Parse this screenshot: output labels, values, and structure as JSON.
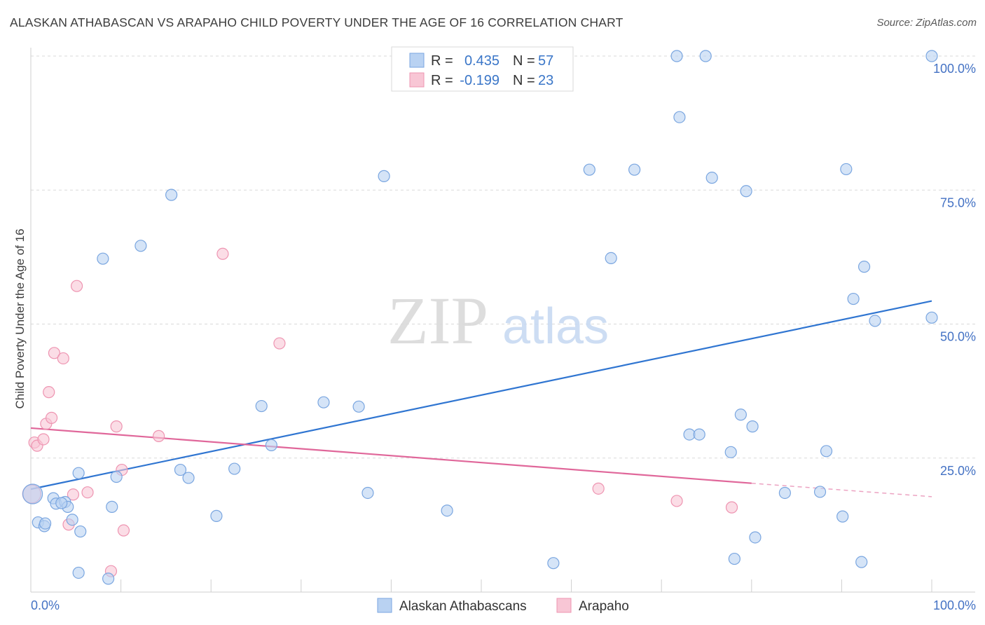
{
  "title": "ALASKAN ATHABASCAN VS ARAPAHO CHILD POVERTY UNDER THE AGE OF 16 CORRELATION CHART",
  "source": "Source: ZipAtlas.com",
  "watermark": {
    "zip": "ZIP",
    "atlas": "atlas"
  },
  "colors": {
    "blue_fill": "#b9d2f2",
    "blue_stroke": "#7aa6e0",
    "blue_line": "#2f75d1",
    "pink_fill": "#f8c6d5",
    "pink_stroke": "#ee94b1",
    "pink_line": "#e0679a",
    "tick_text": "#4472c4",
    "grid": "#d9d9d9"
  },
  "legend": {
    "rows": [
      {
        "r_label": "R =",
        "r_value": "0.435",
        "n_label": "N =",
        "n_value": "57"
      },
      {
        "r_label": "R =",
        "r_value": "-0.199",
        "n_label": "N =",
        "n_value": "23"
      }
    ]
  },
  "bottom_legend": [
    "Alaskan Athabascans",
    "Arapaho"
  ],
  "chart_data": {
    "type": "scatter",
    "title": "ALASKAN ATHABASCAN VS ARAPAHO CHILD POVERTY UNDER THE AGE OF 16 CORRELATION CHART",
    "xlabel": "",
    "ylabel": "Child Poverty Under the Age of 16",
    "xlim": [
      0,
      100
    ],
    "ylim": [
      0,
      100
    ],
    "x_tick_labels": [
      "0.0%",
      "100.0%"
    ],
    "y_tick_labels": [
      {
        "value": 25,
        "label": "25.0%"
      },
      {
        "value": 50,
        "label": "50.0%"
      },
      {
        "value": 75,
        "label": "75.0%"
      },
      {
        "value": 100,
        "label": "100.0%"
      }
    ],
    "grid": true,
    "legend_position": "top-center",
    "series": [
      {
        "name": "Alaskan Athabascans",
        "r": 0.435,
        "n": 57,
        "trend": {
          "x": [
            0,
            100
          ],
          "y": [
            19.2,
            54.3
          ]
        },
        "points": [
          [
            0.2,
            18.3
          ],
          [
            0.8,
            13.0
          ],
          [
            1.5,
            12.3
          ],
          [
            1.6,
            12.8
          ],
          [
            2.5,
            17.5
          ],
          [
            2.8,
            16.5
          ],
          [
            3.8,
            16.8
          ],
          [
            4.1,
            15.9
          ],
          [
            4.6,
            13.5
          ],
          [
            5.3,
            22.2
          ],
          [
            5.5,
            11.3
          ],
          [
            8.0,
            62.2
          ],
          [
            9.0,
            15.9
          ],
          [
            9.5,
            21.5
          ],
          [
            12.2,
            64.6
          ],
          [
            15.6,
            74.1
          ],
          [
            16.6,
            22.8
          ],
          [
            17.5,
            21.3
          ],
          [
            20.6,
            14.2
          ],
          [
            22.6,
            23.0
          ],
          [
            25.6,
            34.7
          ],
          [
            26.7,
            27.4
          ],
          [
            32.5,
            35.4
          ],
          [
            36.4,
            34.6
          ],
          [
            37.4,
            18.5
          ],
          [
            39.2,
            77.6
          ],
          [
            46.2,
            15.2
          ],
          [
            58.0,
            5.4
          ],
          [
            62.0,
            78.8
          ],
          [
            64.4,
            62.3
          ],
          [
            67.0,
            78.8
          ],
          [
            71.7,
            100.0
          ],
          [
            72.0,
            88.6
          ],
          [
            73.1,
            29.4
          ],
          [
            74.2,
            29.4
          ],
          [
            74.9,
            100.0
          ],
          [
            75.6,
            77.3
          ],
          [
            77.7,
            26.1
          ],
          [
            78.1,
            6.2
          ],
          [
            78.8,
            33.1
          ],
          [
            79.4,
            74.8
          ],
          [
            80.1,
            30.9
          ],
          [
            80.4,
            10.2
          ],
          [
            83.7,
            18.5
          ],
          [
            87.6,
            18.7
          ],
          [
            88.3,
            26.3
          ],
          [
            90.1,
            14.1
          ],
          [
            90.5,
            78.9
          ],
          [
            91.3,
            54.7
          ],
          [
            92.2,
            5.6
          ],
          [
            92.5,
            60.7
          ],
          [
            93.7,
            50.6
          ],
          [
            100.0,
            100.0
          ],
          [
            100.0,
            51.2
          ],
          [
            3.4,
            16.6
          ],
          [
            8.6,
            2.5
          ],
          [
            5.3,
            3.6
          ]
        ]
      },
      {
        "name": "Arapaho",
        "r": -0.199,
        "n": 23,
        "trend": {
          "x": [
            0,
            80.0
          ],
          "y": [
            30.6,
            20.3
          ]
        },
        "trend_dashed": {
          "x": [
            80.0,
            100
          ],
          "y": [
            20.3,
            17.8
          ]
        },
        "points": [
          [
            0.4,
            27.9
          ],
          [
            0.7,
            27.3
          ],
          [
            1.4,
            28.5
          ],
          [
            1.7,
            31.4
          ],
          [
            2.0,
            37.3
          ],
          [
            2.3,
            32.5
          ],
          [
            2.6,
            44.6
          ],
          [
            3.6,
            43.6
          ],
          [
            4.2,
            12.6
          ],
          [
            4.7,
            18.2
          ],
          [
            5.1,
            57.1
          ],
          [
            6.3,
            18.6
          ],
          [
            8.9,
            3.9
          ],
          [
            9.5,
            30.9
          ],
          [
            10.1,
            22.8
          ],
          [
            10.3,
            11.5
          ],
          [
            14.2,
            29.1
          ],
          [
            21.3,
            63.1
          ],
          [
            27.6,
            46.4
          ],
          [
            63.0,
            19.3
          ],
          [
            71.7,
            17.0
          ],
          [
            77.8,
            15.8
          ],
          [
            0.1,
            18.3
          ]
        ]
      }
    ]
  }
}
